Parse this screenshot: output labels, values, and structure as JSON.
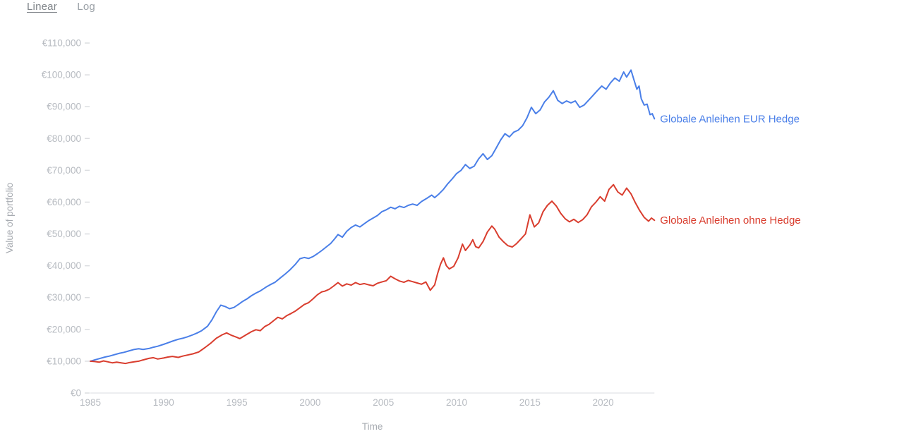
{
  "controls": {
    "linear_label": "Linear",
    "log_label": "Log",
    "selected_scale": "Linear"
  },
  "chart_data": {
    "type": "line",
    "title": "",
    "xlabel": "Time",
    "ylabel": "Value of portfolio",
    "xlim": [
      1985,
      2023.5
    ],
    "ylim": [
      0,
      110000
    ],
    "grid": false,
    "legend_position": "right-of-line-ends",
    "x_ticks": [
      1985,
      1990,
      1995,
      2000,
      2005,
      2010,
      2015,
      2020
    ],
    "y_ticks": [
      {
        "value": 0,
        "label": "€0"
      },
      {
        "value": 10000,
        "label": "€10,000"
      },
      {
        "value": 20000,
        "label": "€20,000"
      },
      {
        "value": 30000,
        "label": "€30,000"
      },
      {
        "value": 40000,
        "label": "€40,000"
      },
      {
        "value": 50000,
        "label": "€50,000"
      },
      {
        "value": 60000,
        "label": "€60,000"
      },
      {
        "value": 70000,
        "label": "€70,000"
      },
      {
        "value": 80000,
        "label": "€80,000"
      },
      {
        "value": 90000,
        "label": "€90,000"
      },
      {
        "value": 100000,
        "label": "€100,000"
      },
      {
        "value": 110000,
        "label": "€110,000"
      }
    ],
    "axis_color": "#dbdde0",
    "series": [
      {
        "name": "Globale Anleihen EUR Hedge",
        "color": "#4a7fe8",
        "points": [
          [
            1985.0,
            10000
          ],
          [
            1985.3,
            10400
          ],
          [
            1985.6,
            10800
          ],
          [
            1986.0,
            11300
          ],
          [
            1986.3,
            11600
          ],
          [
            1986.6,
            12000
          ],
          [
            1987.0,
            12500
          ],
          [
            1987.3,
            12800
          ],
          [
            1987.6,
            13200
          ],
          [
            1988.0,
            13700
          ],
          [
            1988.3,
            13900
          ],
          [
            1988.6,
            13700
          ],
          [
            1989.0,
            14000
          ],
          [
            1989.3,
            14400
          ],
          [
            1989.6,
            14700
          ],
          [
            1990.0,
            15300
          ],
          [
            1990.3,
            15800
          ],
          [
            1990.6,
            16300
          ],
          [
            1991.0,
            16900
          ],
          [
            1991.3,
            17200
          ],
          [
            1991.6,
            17600
          ],
          [
            1992.0,
            18300
          ],
          [
            1992.3,
            18900
          ],
          [
            1992.6,
            19600
          ],
          [
            1993.0,
            21000
          ],
          [
            1993.3,
            23000
          ],
          [
            1993.6,
            25500
          ],
          [
            1993.9,
            27600
          ],
          [
            1994.2,
            27200
          ],
          [
            1994.5,
            26500
          ],
          [
            1994.8,
            26900
          ],
          [
            1995.1,
            27800
          ],
          [
            1995.4,
            28800
          ],
          [
            1995.7,
            29600
          ],
          [
            1996.0,
            30600
          ],
          [
            1996.3,
            31400
          ],
          [
            1996.6,
            32100
          ],
          [
            1997.0,
            33300
          ],
          [
            1997.3,
            34100
          ],
          [
            1997.6,
            34800
          ],
          [
            1998.0,
            36300
          ],
          [
            1998.3,
            37400
          ],
          [
            1998.6,
            38600
          ],
          [
            1999.0,
            40500
          ],
          [
            1999.3,
            42200
          ],
          [
            1999.6,
            42600
          ],
          [
            1999.9,
            42300
          ],
          [
            2000.2,
            42900
          ],
          [
            2000.5,
            43800
          ],
          [
            2000.8,
            44800
          ],
          [
            2001.1,
            45900
          ],
          [
            2001.4,
            47000
          ],
          [
            2001.7,
            48600
          ],
          [
            2001.9,
            49800
          ],
          [
            2002.2,
            49000
          ],
          [
            2002.5,
            50800
          ],
          [
            2002.8,
            52000
          ],
          [
            2003.1,
            52800
          ],
          [
            2003.4,
            52200
          ],
          [
            2003.7,
            53200
          ],
          [
            2004.0,
            54200
          ],
          [
            2004.3,
            55000
          ],
          [
            2004.6,
            55800
          ],
          [
            2004.9,
            57000
          ],
          [
            2005.2,
            57600
          ],
          [
            2005.5,
            58400
          ],
          [
            2005.8,
            57900
          ],
          [
            2006.1,
            58700
          ],
          [
            2006.4,
            58300
          ],
          [
            2006.7,
            59000
          ],
          [
            2007.0,
            59400
          ],
          [
            2007.3,
            59000
          ],
          [
            2007.6,
            60200
          ],
          [
            2008.0,
            61300
          ],
          [
            2008.3,
            62200
          ],
          [
            2008.5,
            61400
          ],
          [
            2008.8,
            62600
          ],
          [
            2009.1,
            64000
          ],
          [
            2009.4,
            65800
          ],
          [
            2009.7,
            67300
          ],
          [
            2010.0,
            69000
          ],
          [
            2010.3,
            70000
          ],
          [
            2010.6,
            71800
          ],
          [
            2010.9,
            70600
          ],
          [
            2011.2,
            71300
          ],
          [
            2011.5,
            73600
          ],
          [
            2011.8,
            75200
          ],
          [
            2012.1,
            73400
          ],
          [
            2012.4,
            74600
          ],
          [
            2012.7,
            77000
          ],
          [
            2013.0,
            79500
          ],
          [
            2013.3,
            81500
          ],
          [
            2013.6,
            80500
          ],
          [
            2013.9,
            82000
          ],
          [
            2014.2,
            82600
          ],
          [
            2014.5,
            84000
          ],
          [
            2014.8,
            86500
          ],
          [
            2015.1,
            89800
          ],
          [
            2015.4,
            87800
          ],
          [
            2015.7,
            89000
          ],
          [
            2016.0,
            91500
          ],
          [
            2016.3,
            93000
          ],
          [
            2016.6,
            95000
          ],
          [
            2016.9,
            92000
          ],
          [
            2017.2,
            91000
          ],
          [
            2017.5,
            91800
          ],
          [
            2017.8,
            91200
          ],
          [
            2018.1,
            91800
          ],
          [
            2018.4,
            89800
          ],
          [
            2018.7,
            90500
          ],
          [
            2019.0,
            92000
          ],
          [
            2019.3,
            93500
          ],
          [
            2019.6,
            95000
          ],
          [
            2019.9,
            96500
          ],
          [
            2020.2,
            95500
          ],
          [
            2020.5,
            97500
          ],
          [
            2020.8,
            99000
          ],
          [
            2021.1,
            98000
          ],
          [
            2021.4,
            100900
          ],
          [
            2021.6,
            99300
          ],
          [
            2021.9,
            101500
          ],
          [
            2022.1,
            98500
          ],
          [
            2022.3,
            95500
          ],
          [
            2022.45,
            96500
          ],
          [
            2022.6,
            92500
          ],
          [
            2022.8,
            90500
          ],
          [
            2023.0,
            90800
          ],
          [
            2023.2,
            87500
          ],
          [
            2023.35,
            87800
          ],
          [
            2023.5,
            86200
          ]
        ]
      },
      {
        "name": "Globale Anleihen ohne Hedge",
        "color": "#d93d2e",
        "points": [
          [
            1985.0,
            10000
          ],
          [
            1985.3,
            9900
          ],
          [
            1985.6,
            9700
          ],
          [
            1985.9,
            10100
          ],
          [
            1986.2,
            9800
          ],
          [
            1986.5,
            9500
          ],
          [
            1986.8,
            9700
          ],
          [
            1987.1,
            9500
          ],
          [
            1987.4,
            9300
          ],
          [
            1987.7,
            9600
          ],
          [
            1988.0,
            9800
          ],
          [
            1988.3,
            10000
          ],
          [
            1988.6,
            10400
          ],
          [
            1989.0,
            10900
          ],
          [
            1989.3,
            11100
          ],
          [
            1989.6,
            10700
          ],
          [
            1990.0,
            11000
          ],
          [
            1990.3,
            11300
          ],
          [
            1990.6,
            11500
          ],
          [
            1991.0,
            11200
          ],
          [
            1991.3,
            11600
          ],
          [
            1991.6,
            11900
          ],
          [
            1992.0,
            12300
          ],
          [
            1992.4,
            12900
          ],
          [
            1992.8,
            14200
          ],
          [
            1993.2,
            15600
          ],
          [
            1993.6,
            17200
          ],
          [
            1994.0,
            18300
          ],
          [
            1994.3,
            18900
          ],
          [
            1994.6,
            18200
          ],
          [
            1995.0,
            17500
          ],
          [
            1995.2,
            17100
          ],
          [
            1995.6,
            18200
          ],
          [
            1996.0,
            19300
          ],
          [
            1996.3,
            19900
          ],
          [
            1996.6,
            19600
          ],
          [
            1996.9,
            20900
          ],
          [
            1997.2,
            21600
          ],
          [
            1997.5,
            22700
          ],
          [
            1997.8,
            23800
          ],
          [
            1998.1,
            23300
          ],
          [
            1998.4,
            24300
          ],
          [
            1998.7,
            25000
          ],
          [
            1999.0,
            25800
          ],
          [
            1999.3,
            26800
          ],
          [
            1999.6,
            27800
          ],
          [
            1999.9,
            28400
          ],
          [
            2000.2,
            29600
          ],
          [
            2000.5,
            30900
          ],
          [
            2000.8,
            31800
          ],
          [
            2001.0,
            32000
          ],
          [
            2001.3,
            32600
          ],
          [
            2001.6,
            33600
          ],
          [
            2001.9,
            34700
          ],
          [
            2002.2,
            33600
          ],
          [
            2002.5,
            34300
          ],
          [
            2002.8,
            33900
          ],
          [
            2003.1,
            34700
          ],
          [
            2003.4,
            34100
          ],
          [
            2003.7,
            34400
          ],
          [
            2004.0,
            34000
          ],
          [
            2004.3,
            33700
          ],
          [
            2004.6,
            34500
          ],
          [
            2004.9,
            34900
          ],
          [
            2005.2,
            35300
          ],
          [
            2005.5,
            36700
          ],
          [
            2005.8,
            35900
          ],
          [
            2006.1,
            35200
          ],
          [
            2006.4,
            34800
          ],
          [
            2006.7,
            35400
          ],
          [
            2007.0,
            35000
          ],
          [
            2007.3,
            34600
          ],
          [
            2007.6,
            34200
          ],
          [
            2007.9,
            34900
          ],
          [
            2008.2,
            32300
          ],
          [
            2008.5,
            34000
          ],
          [
            2008.7,
            37500
          ],
          [
            2008.9,
            40500
          ],
          [
            2009.1,
            42500
          ],
          [
            2009.3,
            40000
          ],
          [
            2009.5,
            39000
          ],
          [
            2009.8,
            39800
          ],
          [
            2010.1,
            42500
          ],
          [
            2010.4,
            46800
          ],
          [
            2010.6,
            44800
          ],
          [
            2010.9,
            46500
          ],
          [
            2011.1,
            48200
          ],
          [
            2011.3,
            46000
          ],
          [
            2011.5,
            45600
          ],
          [
            2011.8,
            47600
          ],
          [
            2012.1,
            50600
          ],
          [
            2012.4,
            52500
          ],
          [
            2012.6,
            51500
          ],
          [
            2012.9,
            49000
          ],
          [
            2013.2,
            47500
          ],
          [
            2013.5,
            46300
          ],
          [
            2013.8,
            45900
          ],
          [
            2014.1,
            47000
          ],
          [
            2014.4,
            48500
          ],
          [
            2014.7,
            50000
          ],
          [
            2015.0,
            56000
          ],
          [
            2015.3,
            52200
          ],
          [
            2015.6,
            53500
          ],
          [
            2015.9,
            57000
          ],
          [
            2016.2,
            59000
          ],
          [
            2016.5,
            60300
          ],
          [
            2016.8,
            58800
          ],
          [
            2017.1,
            56500
          ],
          [
            2017.4,
            54800
          ],
          [
            2017.7,
            53800
          ],
          [
            2018.0,
            54600
          ],
          [
            2018.3,
            53600
          ],
          [
            2018.6,
            54500
          ],
          [
            2018.9,
            56000
          ],
          [
            2019.2,
            58500
          ],
          [
            2019.5,
            60000
          ],
          [
            2019.8,
            61700
          ],
          [
            2020.1,
            60300
          ],
          [
            2020.4,
            64000
          ],
          [
            2020.7,
            65500
          ],
          [
            2021.0,
            63200
          ],
          [
            2021.3,
            62200
          ],
          [
            2021.6,
            64400
          ],
          [
            2021.9,
            62600
          ],
          [
            2022.2,
            59800
          ],
          [
            2022.5,
            57300
          ],
          [
            2022.8,
            55200
          ],
          [
            2023.1,
            54000
          ],
          [
            2023.3,
            55000
          ],
          [
            2023.5,
            54300
          ]
        ]
      }
    ]
  }
}
